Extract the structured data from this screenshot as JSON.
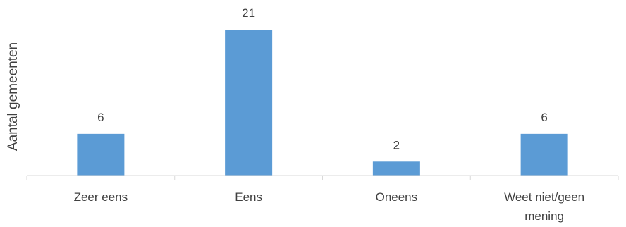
{
  "chart_data": {
    "type": "bar",
    "title": "",
    "xlabel": "",
    "ylabel": "Aantal gemeenten",
    "categories": [
      "Zeer eens",
      "Eens",
      "Oneens",
      "Weet niet/geen mening"
    ],
    "series": [
      {
        "values": [
          6,
          21,
          2,
          6
        ],
        "color": "#5b9bd5"
      }
    ],
    "ylim": [
      0,
      21
    ],
    "grid": false,
    "legend": "none",
    "data_labels": true
  }
}
